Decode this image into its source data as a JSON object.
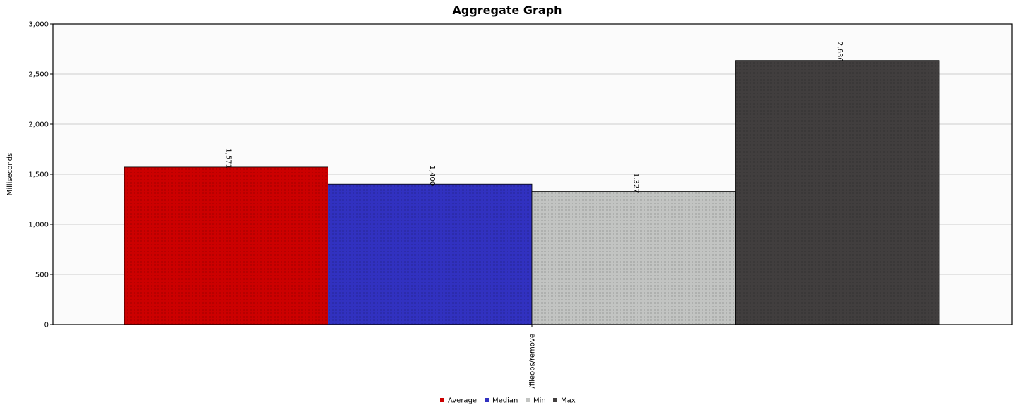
{
  "chart_data": {
    "type": "bar",
    "title": "Aggregate Graph",
    "xlabel": "",
    "ylabel": "Milliseconds",
    "ylim": [
      0,
      3000
    ],
    "yticks": [
      0,
      500,
      1000,
      1500,
      2000,
      2500,
      3000
    ],
    "ytick_labels": [
      "0",
      "500",
      "1,000",
      "1,500",
      "2,000",
      "2,500",
      "3,000"
    ],
    "categories": [
      "/fileops/remove"
    ],
    "grid": true,
    "legend_position": "bottom",
    "series": [
      {
        "name": "Average",
        "values": [
          1571
        ],
        "label": "1,571",
        "color": "#cc0000"
      },
      {
        "name": "Median",
        "values": [
          1400
        ],
        "label": "1,400",
        "color": "#3131c0"
      },
      {
        "name": "Min",
        "values": [
          1327
        ],
        "label": "1,327",
        "color": "#c2c4c2"
      },
      {
        "name": "Max",
        "values": [
          2636
        ],
        "label": "2,636",
        "color": "#413e3e"
      }
    ]
  }
}
